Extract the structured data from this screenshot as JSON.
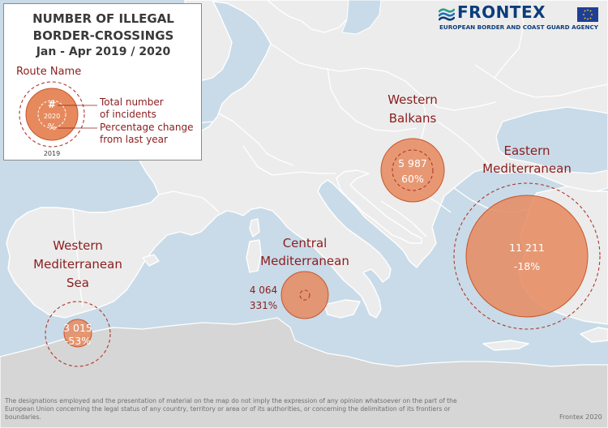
{
  "legend": {
    "title_line1": "NUMBER OF ILLEGAL",
    "title_line2": "BORDER-CROSSINGS",
    "subtitle": "Jan - Apr 2019 / 2020",
    "route_name": "Route Name",
    "symbol_count": "#",
    "symbol_year_current": "2020",
    "symbol_percent": "%",
    "symbol_year_previous": "2019",
    "total_label_line1": "Total number",
    "total_label_line2": "of incidents",
    "pct_label_line1": "Percentage change",
    "pct_label_line2": "from last year"
  },
  "logo": {
    "name": "FRONTEX",
    "tagline": "EUROPEAN BORDER AND COAST GUARD AGENCY"
  },
  "routes": [
    {
      "name_line1": "Western",
      "name_line2": "Mediterranean",
      "name_line3": "Sea",
      "total": "3 015",
      "change": "-53%"
    },
    {
      "name_line1": "Central",
      "name_line2": "Mediterranean",
      "total": "4 064",
      "change": "331%"
    },
    {
      "name_line1": "Western",
      "name_line2": "Balkans",
      "total": "5 987",
      "change": "60%"
    },
    {
      "name_line1": "Eastern",
      "name_line2": "Mediterranean",
      "total": "11 211",
      "change": "-18%"
    }
  ],
  "disclaimer": "The designations employed and the presentation of material on the map do not imply the expression of any opinion whatsoever on the part of the European Union concerning the legal status of any country, territory or area or of its authorities, or concerning the delimitation of its frontiers or boundaries.",
  "credit": "Frontex 2020",
  "colors": {
    "sea": "#c9dbe8",
    "land": "#ececec",
    "bubble": "#e68a5e",
    "label": "#8b1d1d"
  }
}
